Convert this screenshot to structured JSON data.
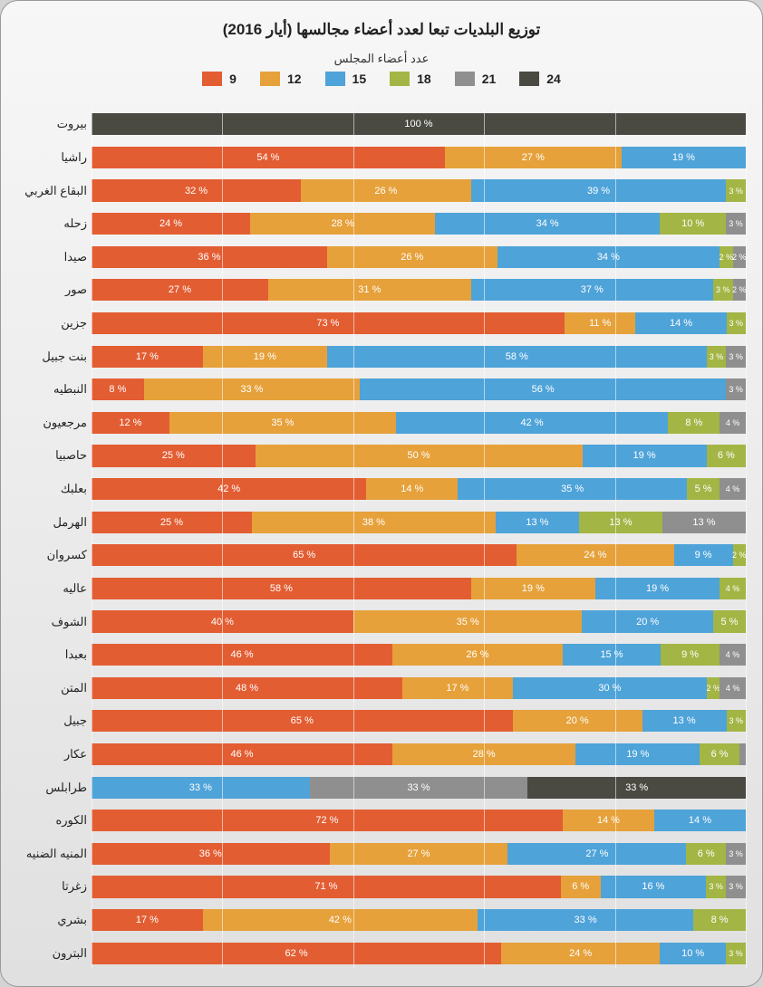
{
  "chart": {
    "title": "توزيع البلديات تبعا لعدد أعضاء مجالسها (أيار 2016)",
    "legend_title": "عدد أعضاء المجلس",
    "series": [
      {
        "key": "9",
        "label": "9",
        "color": "#e35d32"
      },
      {
        "key": "12",
        "label": "12",
        "color": "#e6a13a"
      },
      {
        "key": "15",
        "label": "15",
        "color": "#4ea3d9"
      },
      {
        "key": "18",
        "label": "18",
        "color": "#a3b544"
      },
      {
        "key": "21",
        "label": "21",
        "color": "#8f8f8f"
      },
      {
        "key": "24",
        "label": "24",
        "color": "#4a4a42"
      }
    ],
    "background_color": "#ffffff",
    "grid_color": "#ffffff",
    "bar_height_ratio": 0.66,
    "xlim": [
      0,
      100
    ],
    "xtick_step": 20,
    "label_font_size": 13,
    "seg_label_font_size": 11,
    "min_label_pct": 5,
    "rows": [
      {
        "name": "بيروت",
        "values": {
          "9": 0,
          "12": 0,
          "15": 0,
          "18": 0,
          "21": 0,
          "24": 100
        }
      },
      {
        "name": "راشيا",
        "values": {
          "9": 54,
          "12": 27,
          "15": 19,
          "18": 0,
          "21": 0,
          "24": 0
        }
      },
      {
        "name": "البقاع الغربي",
        "values": {
          "9": 32,
          "12": 26,
          "15": 39,
          "18": 3,
          "21": 0,
          "24": 0
        }
      },
      {
        "name": "زحله",
        "values": {
          "9": 24,
          "12": 28,
          "15": 34,
          "18": 10,
          "21": 3,
          "24": 0
        }
      },
      {
        "name": "صيدا",
        "values": {
          "9": 36,
          "12": 26,
          "15": 34,
          "18": 2,
          "21": 2,
          "24": 0
        }
      },
      {
        "name": "صور",
        "values": {
          "9": 27,
          "12": 31,
          "15": 37,
          "18": 3,
          "21": 2,
          "24": 0
        }
      },
      {
        "name": "جزين",
        "values": {
          "9": 73,
          "12": 11,
          "15": 14,
          "18": 3,
          "21": 0,
          "24": 0
        }
      },
      {
        "name": "بنت جبيل",
        "values": {
          "9": 17,
          "12": 19,
          "15": 58,
          "18": 3,
          "21": 3,
          "24": 0
        }
      },
      {
        "name": "النبطيه",
        "values": {
          "9": 8,
          "12": 33,
          "15": 56,
          "18": 0,
          "21": 3,
          "24": 0
        }
      },
      {
        "name": "مرجعيون",
        "values": {
          "9": 12,
          "12": 35,
          "15": 42,
          "18": 8,
          "21": 4,
          "24": 0
        }
      },
      {
        "name": "حاصبيا",
        "values": {
          "9": 25,
          "12": 50,
          "15": 19,
          "18": 6,
          "21": 0,
          "24": 0
        }
      },
      {
        "name": "بعلبك",
        "values": {
          "9": 42,
          "12": 14,
          "15": 35,
          "18": 5,
          "21": 4,
          "24": 0
        }
      },
      {
        "name": "الهرمل",
        "values": {
          "9": 25,
          "12": 38,
          "15": 13,
          "18": 13,
          "21": 13,
          "24": 0
        }
      },
      {
        "name": "كسروان",
        "values": {
          "9": 65,
          "12": 24,
          "15": 9,
          "18": 2,
          "21": 0,
          "24": 0
        }
      },
      {
        "name": "عاليه",
        "values": {
          "9": 58,
          "12": 19,
          "15": 19,
          "18": 4,
          "21": 0,
          "24": 0
        }
      },
      {
        "name": "الشوف",
        "values": {
          "9": 40,
          "12": 35,
          "15": 20,
          "18": 5,
          "21": 0,
          "24": 0
        }
      },
      {
        "name": "بعبدا",
        "values": {
          "9": 46,
          "12": 26,
          "15": 15,
          "18": 9,
          "21": 4,
          "24": 0
        }
      },
      {
        "name": "المتن",
        "values": {
          "9": 48,
          "12": 17,
          "15": 30,
          "18": 2,
          "21": 4,
          "24": 0
        }
      },
      {
        "name": "جبيل",
        "values": {
          "9": 65,
          "12": 20,
          "15": 13,
          "18": 3,
          "21": 0,
          "24": 0
        }
      },
      {
        "name": "عكار",
        "values": {
          "9": 46,
          "12": 28,
          "15": 19,
          "18": 6,
          "21": 1,
          "24": 0
        }
      },
      {
        "name": "طرابلس",
        "values": {
          "9": 0,
          "12": 0,
          "15": 33,
          "18": 0,
          "21": 33,
          "24": 33
        }
      },
      {
        "name": "الكوره",
        "values": {
          "9": 72,
          "12": 14,
          "15": 14,
          "18": 0,
          "21": 0,
          "24": 0
        }
      },
      {
        "name": "المنيه الضنيه",
        "values": {
          "9": 36,
          "12": 27,
          "15": 27,
          "18": 6,
          "21": 3,
          "24": 0
        }
      },
      {
        "name": "زغرتا",
        "values": {
          "9": 71,
          "12": 6,
          "15": 16,
          "18": 3,
          "21": 3,
          "24": 0
        }
      },
      {
        "name": "بشري",
        "values": {
          "9": 17,
          "12": 42,
          "15": 33,
          "18": 8,
          "21": 0,
          "24": 0
        }
      },
      {
        "name": "البترون",
        "values": {
          "9": 62,
          "12": 24,
          "15": 10,
          "18": 3,
          "21": 0,
          "24": 0
        }
      }
    ]
  }
}
